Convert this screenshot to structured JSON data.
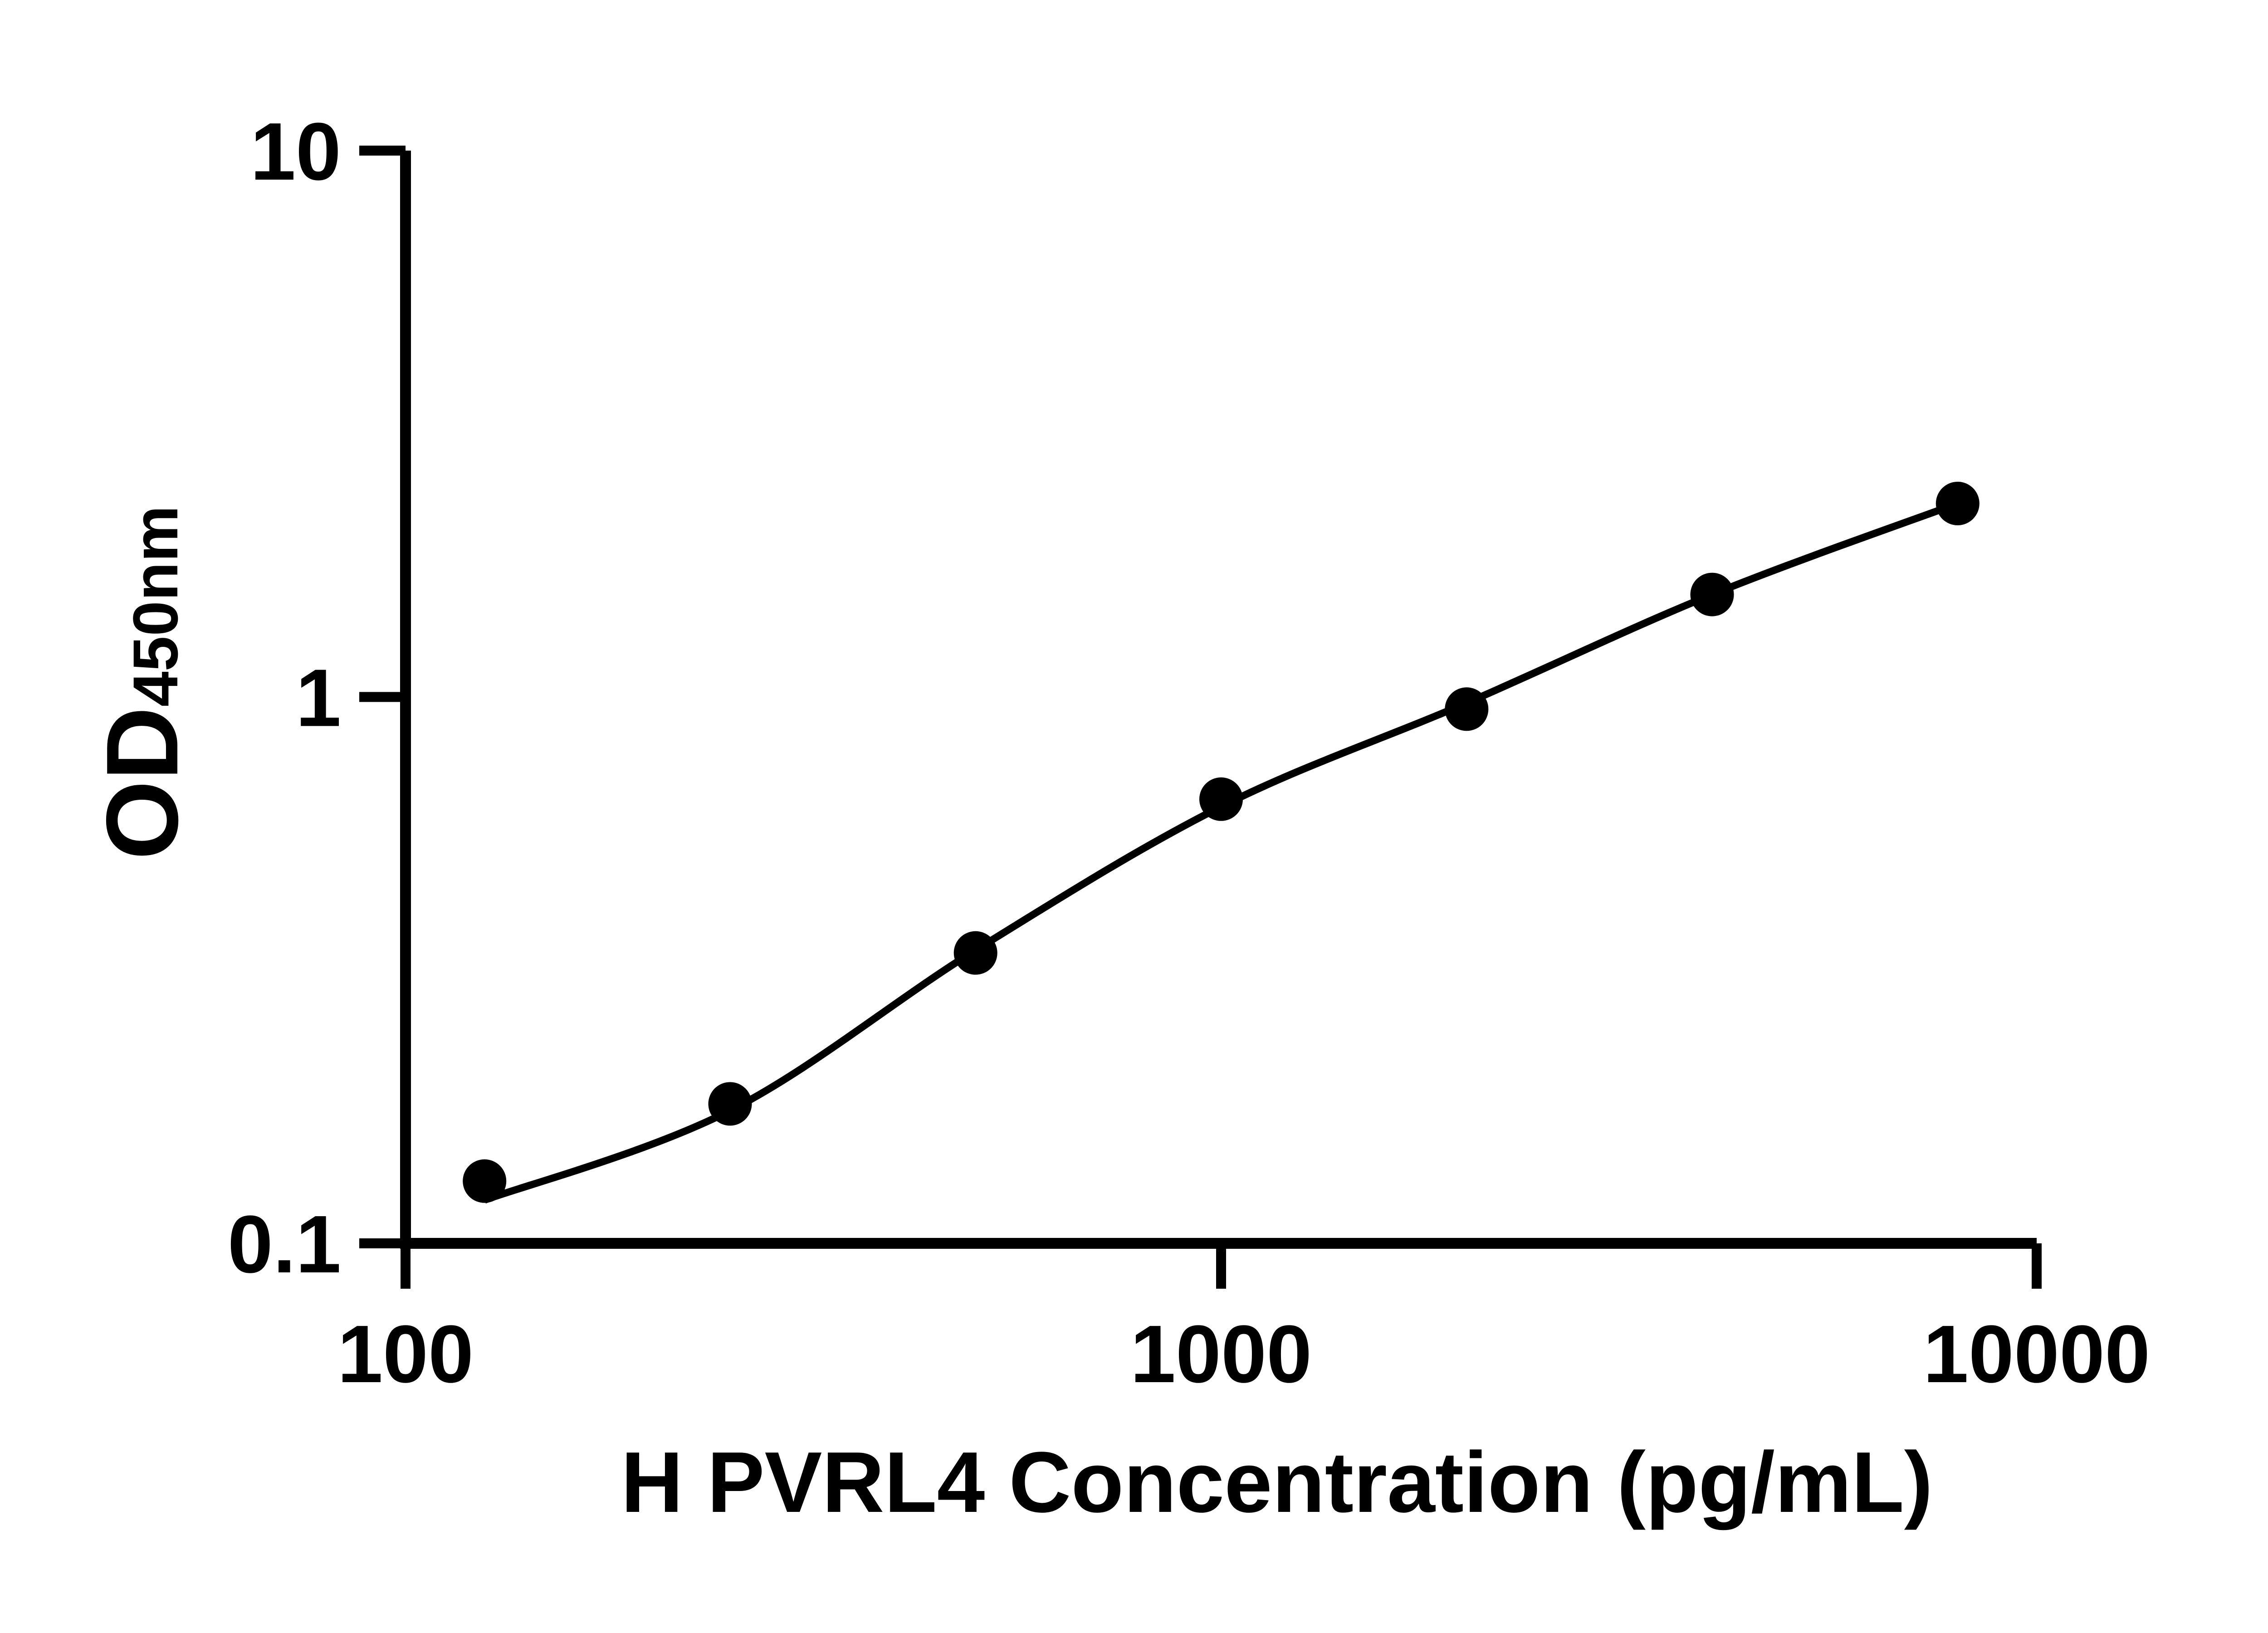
{
  "figure": {
    "background": "#ffffff",
    "ink_color": "#000000"
  },
  "chart_data": {
    "type": "scatter",
    "title": "",
    "xlabel": "H PVRL4 Concentration (pg/mL)",
    "ylabel": {
      "main": "OD",
      "subscript": "450nm"
    },
    "x_scale": "log10",
    "y_scale": "log10",
    "xlim": [
      100,
      10000
    ],
    "ylim": [
      0.1,
      10
    ],
    "grid": false,
    "legend": "none",
    "x_ticks": [
      {
        "v": 100,
        "label": "100"
      },
      {
        "v": 1000,
        "label": "1000"
      },
      {
        "v": 10000,
        "label": "10000"
      }
    ],
    "y_ticks": [
      {
        "v": 10,
        "label": "10"
      },
      {
        "v": 1,
        "label": "1"
      },
      {
        "v": 0.1,
        "label": "0.1"
      }
    ],
    "series": [
      {
        "name": "standard-points",
        "marker": "filled-circle",
        "color": "#000000",
        "x": [
          125,
          250,
          500,
          1000,
          2000,
          4000,
          8000
        ],
        "y": [
          0.13,
          0.18,
          0.34,
          0.65,
          0.95,
          1.54,
          2.26
        ]
      }
    ],
    "fit_curve": {
      "name": "fitted-standard-curve",
      "color": "#000000",
      "x": [
        125,
        250,
        500,
        1000,
        2000,
        4000,
        8000
      ],
      "y": [
        0.12,
        0.175,
        0.344,
        0.63,
        0.975,
        1.54,
        2.26
      ]
    }
  }
}
